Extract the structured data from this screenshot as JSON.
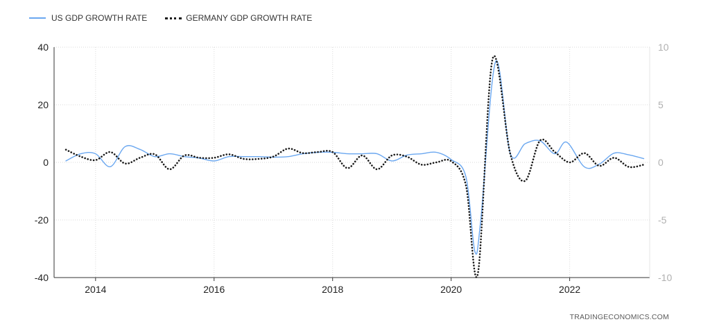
{
  "legend": {
    "us_label": "US GDP GROWTH RATE",
    "de_label": "GERMANY GDP GROWTH RATE"
  },
  "source": "TRADINGECONOMICS.COM",
  "colors": {
    "us": "#6aa7f0",
    "germany": "#1a1a1a",
    "grid": "#d9d9d9",
    "axis": "#333333"
  },
  "chart_data": {
    "type": "line",
    "grid": true,
    "legend_position": "top-left",
    "x_ticks": [
      "2014",
      "2016",
      "2018",
      "2020",
      "2022"
    ],
    "left_axis": {
      "ylim": [
        -40,
        40
      ],
      "ticks": [
        "40",
        "20",
        "0",
        "-20",
        "-40"
      ]
    },
    "right_axis": {
      "ylim": [
        -10,
        10
      ],
      "ticks": [
        "10",
        "5",
        "0",
        "-5",
        "-10"
      ]
    },
    "series": [
      {
        "name": "US GDP GROWTH RATE",
        "axis": "left",
        "style": "solid",
        "x": [
          2013.5,
          2013.75,
          2014.0,
          2014.25,
          2014.5,
          2014.75,
          2015.0,
          2015.25,
          2015.5,
          2015.75,
          2016.0,
          2016.25,
          2016.5,
          2016.75,
          2017.0,
          2017.25,
          2017.5,
          2017.75,
          2018.0,
          2018.25,
          2018.5,
          2018.75,
          2019.0,
          2019.25,
          2019.5,
          2019.75,
          2020.0,
          2020.25,
          2020.4,
          2020.5,
          2020.75,
          2021.0,
          2021.25,
          2021.5,
          2021.75,
          2021.95,
          2022.25,
          2022.5,
          2022.75,
          2023.0,
          2023.25
        ],
        "values": [
          0.5,
          3.0,
          3.0,
          -1.5,
          5.5,
          4.5,
          2.0,
          3.0,
          2.0,
          1.5,
          0.5,
          2.0,
          2.0,
          2.0,
          1.8,
          2.0,
          3.0,
          3.5,
          3.5,
          3.0,
          3.0,
          3.0,
          0.5,
          2.5,
          3.0,
          3.5,
          1.0,
          -5.0,
          -31.0,
          -20.0,
          35.0,
          3.0,
          6.5,
          7.5,
          3.0,
          7.0,
          -1.6,
          -0.6,
          3.2,
          2.6,
          1.3
        ]
      },
      {
        "name": "GERMANY GDP GROWTH RATE",
        "axis": "right",
        "style": "dotted",
        "x": [
          2013.5,
          2013.75,
          2014.0,
          2014.25,
          2014.5,
          2014.75,
          2015.0,
          2015.25,
          2015.5,
          2015.75,
          2016.0,
          2016.25,
          2016.5,
          2016.75,
          2017.0,
          2017.25,
          2017.5,
          2017.75,
          2018.0,
          2018.25,
          2018.5,
          2018.75,
          2019.0,
          2019.25,
          2019.5,
          2019.75,
          2020.0,
          2020.25,
          2020.45,
          2020.7,
          2021.0,
          2021.25,
          2021.5,
          2021.75,
          2022.0,
          2022.25,
          2022.5,
          2022.75,
          2023.0,
          2023.25
        ],
        "values": [
          1.1,
          0.5,
          0.2,
          0.9,
          -0.1,
          0.4,
          0.7,
          -0.6,
          0.6,
          0.4,
          0.4,
          0.7,
          0.3,
          0.3,
          0.5,
          1.2,
          0.8,
          0.9,
          0.9,
          -0.5,
          0.6,
          -0.6,
          0.6,
          0.5,
          -0.2,
          0.0,
          0.1,
          -2.0,
          -9.7,
          9.0,
          0.7,
          -1.6,
          1.9,
          0.9,
          0.0,
          0.8,
          -0.3,
          0.4,
          -0.4,
          -0.2
        ]
      }
    ]
  }
}
